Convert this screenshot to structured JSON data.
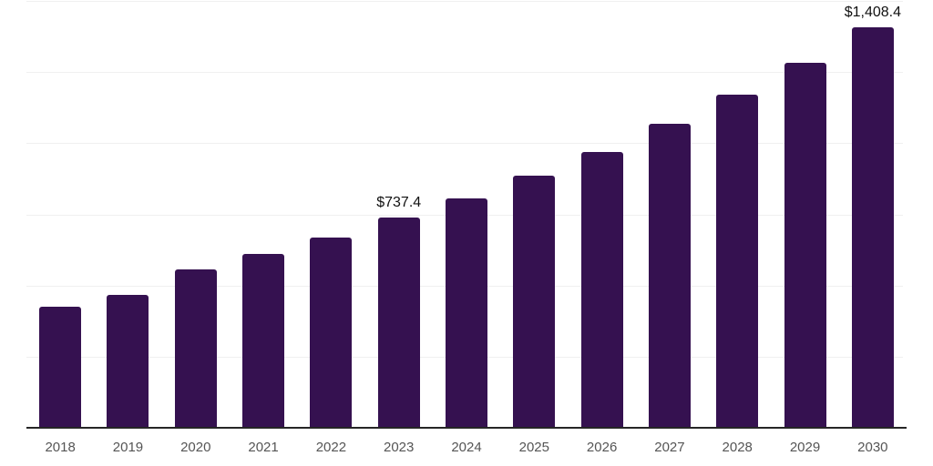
{
  "chart_data": {
    "type": "bar",
    "title": "",
    "xlabel": "",
    "ylabel": "",
    "categories": [
      "2018",
      "2019",
      "2020",
      "2021",
      "2022",
      "2023",
      "2024",
      "2025",
      "2026",
      "2027",
      "2028",
      "2029",
      "2030"
    ],
    "values": [
      426,
      468,
      557,
      612,
      670,
      737.4,
      805,
      885,
      970,
      1067,
      1170,
      1281,
      1408.4
    ],
    "data_labels": [
      {
        "category": "2023",
        "text": "$737.4"
      },
      {
        "category": "2030",
        "text": "$1,408.4"
      }
    ],
    "ylim": [
      0,
      1500
    ],
    "grid_interval": 250,
    "grid": true,
    "legend": false,
    "colors": {
      "bar": "#351150",
      "axis_line": "#262626",
      "gridline": "#f0f0f0",
      "tick_label": "#555555",
      "data_label": "#111111",
      "background": "#ffffff"
    }
  }
}
